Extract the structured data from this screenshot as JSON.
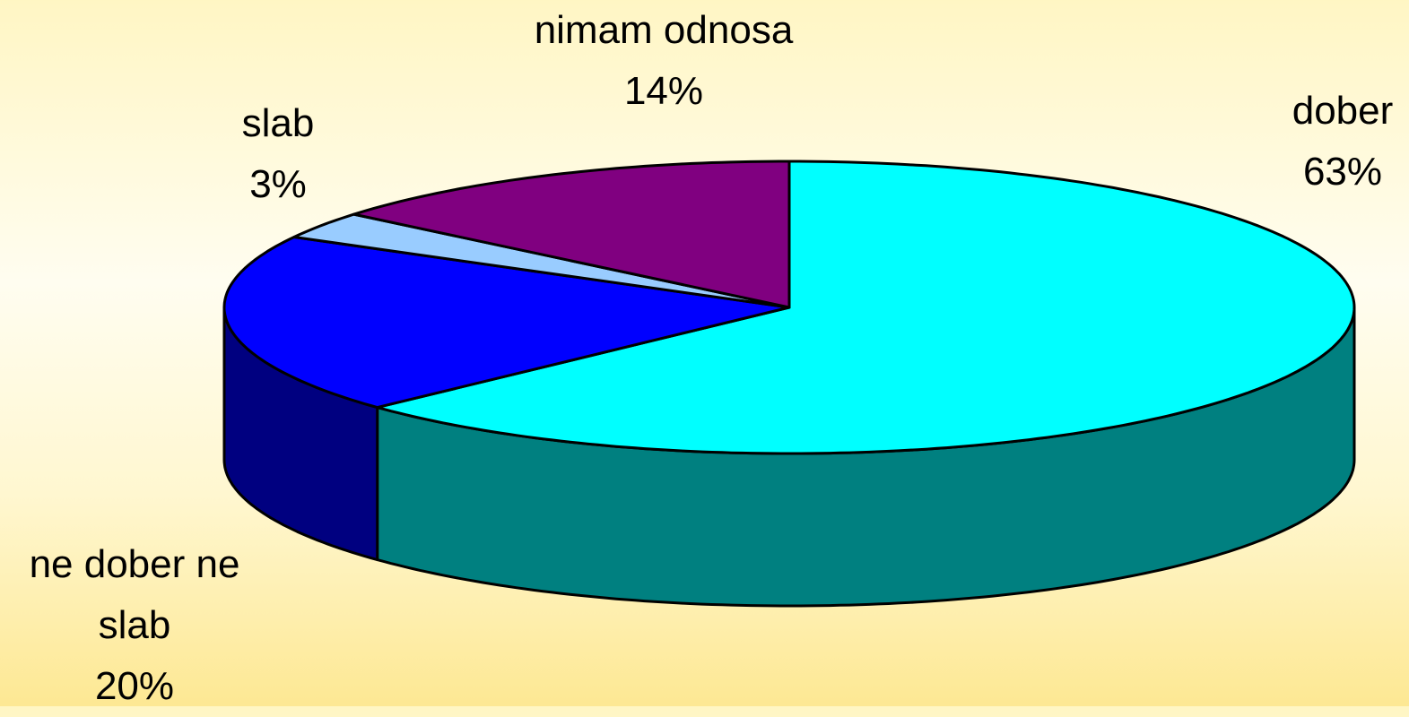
{
  "chart_data": {
    "type": "pie3d",
    "categories": [
      "dober",
      "ne dober ne slab",
      "slab",
      "nimam odnosa"
    ],
    "values": [
      63,
      20,
      3,
      14
    ],
    "value_labels": [
      "63%",
      "20%",
      "3%",
      "14%"
    ],
    "colors": [
      "#00ffff",
      "#0000ff",
      "#99ccff",
      "#800080"
    ],
    "side_colors": [
      "#008080",
      "#000080",
      "#6f93b8",
      "#4d004d"
    ]
  }
}
